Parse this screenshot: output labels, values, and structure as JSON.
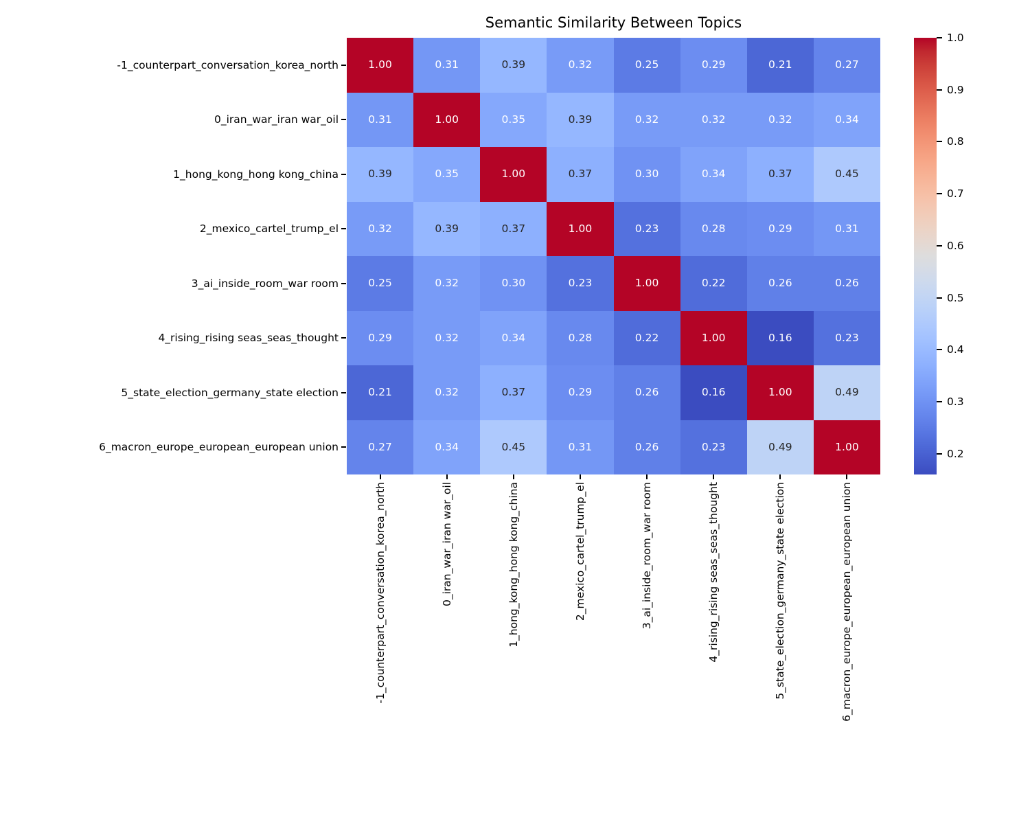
{
  "title": "Semantic Similarity Between Topics",
  "chart_data": {
    "type": "heatmap",
    "title": "Semantic Similarity Between Topics",
    "labels": [
      "-1_counterpart_conversation_korea_north",
      "0_iran_war_iran war_oil",
      "1_hong_kong_hong kong_china",
      "2_mexico_cartel_trump_el",
      "3_ai_inside_room_war room",
      "4_rising_rising seas_seas_thought",
      "5_state_election_germany_state election",
      "6_macron_europe_european_european union"
    ],
    "matrix": [
      [
        1.0,
        0.31,
        0.39,
        0.32,
        0.25,
        0.29,
        0.21,
        0.27
      ],
      [
        0.31,
        1.0,
        0.35,
        0.39,
        0.32,
        0.32,
        0.32,
        0.34
      ],
      [
        0.39,
        0.35,
        1.0,
        0.37,
        0.3,
        0.34,
        0.37,
        0.45
      ],
      [
        0.32,
        0.39,
        0.37,
        1.0,
        0.23,
        0.28,
        0.29,
        0.31
      ],
      [
        0.25,
        0.32,
        0.3,
        0.23,
        1.0,
        0.22,
        0.26,
        0.26
      ],
      [
        0.29,
        0.32,
        0.34,
        0.28,
        0.22,
        1.0,
        0.16,
        0.23
      ],
      [
        0.21,
        0.32,
        0.37,
        0.29,
        0.26,
        0.16,
        1.0,
        0.49
      ],
      [
        0.27,
        0.34,
        0.45,
        0.31,
        0.26,
        0.23,
        0.49,
        1.0
      ]
    ],
    "colormap": "coolwarm",
    "vmin": 0.16,
    "vmax": 1.0,
    "annotation_decimals": 2,
    "colorbar_ticks": [
      "1.0",
      "0.9",
      "0.8",
      "0.7",
      "0.6",
      "0.5",
      "0.4",
      "0.3",
      "0.2"
    ],
    "colorbar_position": "right",
    "grid": false,
    "annot_color_light": "#ffffff",
    "annot_color_dark": "#262626"
  }
}
